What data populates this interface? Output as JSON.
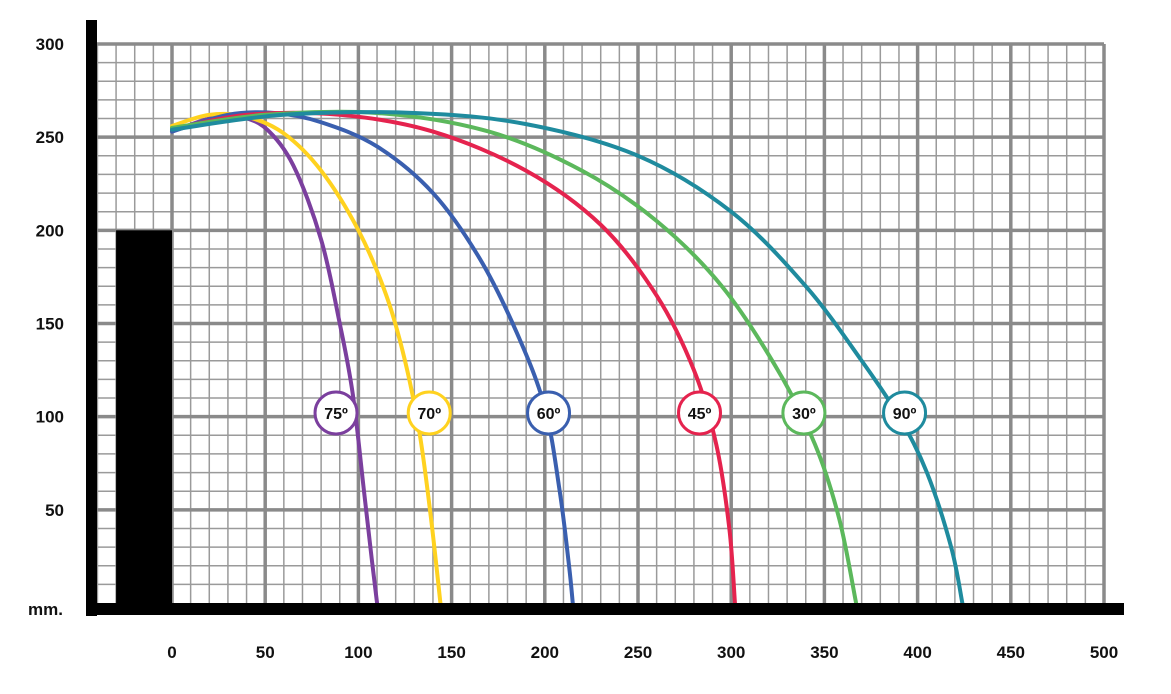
{
  "chart_data": {
    "type": "line",
    "unit_label": "mm.",
    "xlim": [
      -50,
      500
    ],
    "ylim": [
      0,
      310
    ],
    "x_ticks": [
      0,
      50,
      100,
      150,
      200,
      250,
      300,
      350,
      400,
      450,
      500
    ],
    "y_ticks": [
      50,
      100,
      150,
      200,
      250,
      300
    ],
    "grid": true,
    "obstacle": {
      "x_from": -30,
      "x_to": 0,
      "height": 200
    },
    "series": [
      {
        "name": "75º",
        "color": "#7b3f9e",
        "label_at": [
          88,
          102
        ],
        "points": [
          [
            0,
            253
          ],
          [
            20,
            260
          ],
          [
            35,
            261
          ],
          [
            50,
            255
          ],
          [
            65,
            235
          ],
          [
            80,
            195
          ],
          [
            90,
            150
          ],
          [
            97,
            112
          ],
          [
            103,
            60
          ],
          [
            107,
            25
          ],
          [
            110,
            0
          ]
        ]
      },
      {
        "name": "70º",
        "color": "#ffd21f",
        "label_at": [
          138,
          102
        ],
        "points": [
          [
            0,
            256
          ],
          [
            20,
            262
          ],
          [
            40,
            261
          ],
          [
            60,
            252
          ],
          [
            80,
            232
          ],
          [
            100,
            200
          ],
          [
            115,
            165
          ],
          [
            125,
            130
          ],
          [
            133,
            90
          ],
          [
            139,
            45
          ],
          [
            144,
            0
          ]
        ]
      },
      {
        "name": "60º",
        "color": "#3a5faf",
        "label_at": [
          202,
          102
        ],
        "points": [
          [
            0,
            253
          ],
          [
            30,
            262
          ],
          [
            55,
            263
          ],
          [
            80,
            258
          ],
          [
            110,
            245
          ],
          [
            140,
            220
          ],
          [
            165,
            185
          ],
          [
            185,
            145
          ],
          [
            200,
            105
          ],
          [
            208,
            60
          ],
          [
            213,
            20
          ],
          [
            215,
            0
          ]
        ]
      },
      {
        "name": "45º",
        "color": "#e5234e",
        "label_at": [
          283,
          102
        ],
        "points": [
          [
            0,
            254
          ],
          [
            40,
            262
          ],
          [
            90,
            262
          ],
          [
            140,
            253
          ],
          [
            190,
            232
          ],
          [
            230,
            203
          ],
          [
            260,
            165
          ],
          [
            280,
            125
          ],
          [
            292,
            85
          ],
          [
            299,
            40
          ],
          [
            302,
            0
          ]
        ]
      },
      {
        "name": "30º",
        "color": "#5cb85c",
        "label_at": [
          339,
          102
        ],
        "points": [
          [
            0,
            255
          ],
          [
            50,
            262
          ],
          [
            110,
            263
          ],
          [
            170,
            253
          ],
          [
            220,
            232
          ],
          [
            260,
            205
          ],
          [
            295,
            170
          ],
          [
            325,
            125
          ],
          [
            345,
            85
          ],
          [
            358,
            45
          ],
          [
            367,
            0
          ]
        ]
      },
      {
        "name": "90º",
        "color": "#1f8b9e",
        "label_at": [
          393,
          102
        ],
        "points": [
          [
            0,
            254
          ],
          [
            60,
            262
          ],
          [
            130,
            263
          ],
          [
            190,
            257
          ],
          [
            250,
            240
          ],
          [
            300,
            210
          ],
          [
            340,
            170
          ],
          [
            370,
            130
          ],
          [
            390,
            100
          ],
          [
            405,
            70
          ],
          [
            418,
            30
          ],
          [
            424,
            0
          ]
        ]
      }
    ]
  }
}
